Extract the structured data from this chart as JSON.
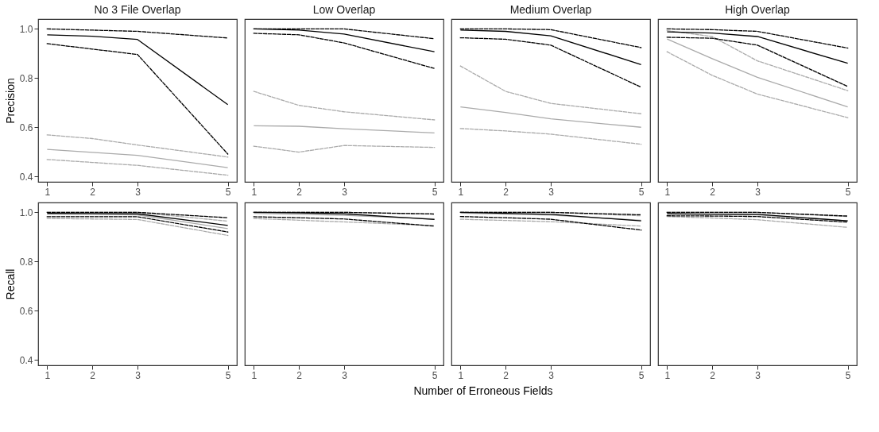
{
  "chart_data": [
    {
      "type": "line",
      "title": "No 3 File Overlap",
      "ylabel": "Precision",
      "x": [
        1,
        2,
        3,
        5
      ],
      "xlim": [
        0.8,
        5.2
      ],
      "xticks": [
        1,
        2,
        3,
        5
      ],
      "ylim": [
        0.378,
        1.04
      ],
      "yticks": [
        0.4,
        0.6,
        0.8,
        {
          "value": 1.0,
          "label": "1.0"
        }
      ],
      "grid": false,
      "series": [
        {
          "color": "#000000",
          "line_style": "solid",
          "values": [
            0.976,
            0.97,
            0.957,
            0.692
          ]
        },
        {
          "color": "#000000",
          "line_style": "dashed",
          "values": [
            1.0,
            0.995,
            0.99,
            0.963
          ]
        },
        {
          "color": "#000000",
          "line_style": "dashed",
          "values": [
            0.94,
            0.918,
            0.896,
            0.491
          ]
        },
        {
          "color": "#aaaaaa",
          "line_style": "dashed",
          "values": [
            0.569,
            0.554,
            0.528,
            0.479
          ]
        },
        {
          "color": "#aaaaaa",
          "line_style": "solid",
          "values": [
            0.51,
            0.498,
            0.486,
            0.436
          ]
        },
        {
          "color": "#aaaaaa",
          "line_style": "dashed",
          "values": [
            0.469,
            0.457,
            0.445,
            0.405
          ]
        }
      ]
    },
    {
      "type": "line",
      "title": "Low Overlap",
      "x": [
        1,
        2,
        3,
        5
      ],
      "xlim": [
        0.8,
        5.2
      ],
      "xticks": [
        1,
        2,
        3,
        5
      ],
      "ylim": [
        0.378,
        1.04
      ],
      "yticks": [
        0.4,
        0.6,
        0.8,
        1.0
      ],
      "tick_labels": "x",
      "grid": false,
      "series": [
        {
          "color": "#000000",
          "line_style": "solid",
          "values": [
            1.0,
            0.995,
            0.979,
            0.907
          ]
        },
        {
          "color": "#000000",
          "line_style": "dashed",
          "values": [
            1.0,
            1.0,
            1.0,
            0.96
          ]
        },
        {
          "color": "#000000",
          "line_style": "dashed",
          "values": [
            0.982,
            0.976,
            0.943,
            0.839
          ]
        },
        {
          "color": "#aaaaaa",
          "line_style": "dashed",
          "values": [
            0.746,
            0.689,
            0.663,
            0.63
          ]
        },
        {
          "color": "#aaaaaa",
          "line_style": "solid",
          "values": [
            0.606,
            0.604,
            0.594,
            0.577
          ]
        },
        {
          "color": "#aaaaaa",
          "line_style": "dashed",
          "values": [
            0.523,
            0.499,
            0.526,
            0.518
          ]
        }
      ]
    },
    {
      "type": "line",
      "title": "Medium Overlap",
      "x": [
        1,
        2,
        3,
        5
      ],
      "xlim": [
        0.8,
        5.2
      ],
      "xticks": [
        1,
        2,
        3,
        5
      ],
      "ylim": [
        0.378,
        1.04
      ],
      "yticks": [
        0.4,
        0.6,
        0.8,
        1.0
      ],
      "tick_labels": "x",
      "grid": false,
      "series": [
        {
          "color": "#000000",
          "line_style": "solid",
          "values": [
            0.995,
            0.99,
            0.972,
            0.855
          ]
        },
        {
          "color": "#000000",
          "line_style": "dashed",
          "values": [
            1.0,
            1.0,
            0.997,
            0.924
          ]
        },
        {
          "color": "#000000",
          "line_style": "dashed",
          "values": [
            0.964,
            0.958,
            0.934,
            0.763
          ]
        },
        {
          "color": "#aaaaaa",
          "line_style": "dashed",
          "values": [
            0.849,
            0.746,
            0.697,
            0.655
          ]
        },
        {
          "color": "#aaaaaa",
          "line_style": "solid",
          "values": [
            0.683,
            0.66,
            0.634,
            0.6
          ]
        },
        {
          "color": "#aaaaaa",
          "line_style": "dashed",
          "values": [
            0.595,
            0.585,
            0.572,
            0.531
          ]
        }
      ]
    },
    {
      "type": "line",
      "title": "High Overlap",
      "x": [
        1,
        2,
        3,
        5
      ],
      "xlim": [
        0.8,
        5.2
      ],
      "xticks": [
        1,
        2,
        3,
        5
      ],
      "ylim": [
        0.378,
        1.04
      ],
      "yticks": [
        0.4,
        0.6,
        0.8,
        1.0
      ],
      "tick_labels": "x",
      "grid": false,
      "series": [
        {
          "color": "#000000",
          "line_style": "solid",
          "values": [
            0.988,
            0.983,
            0.969,
            0.86
          ]
        },
        {
          "color": "#000000",
          "line_style": "dashed",
          "values": [
            1.0,
            0.997,
            0.99,
            0.922
          ]
        },
        {
          "color": "#000000",
          "line_style": "dashed",
          "values": [
            0.966,
            0.962,
            0.934,
            0.766
          ]
        },
        {
          "color": "#aaaaaa",
          "line_style": "dashed",
          "values": [
            0.993,
            0.969,
            0.87,
            0.749
          ]
        },
        {
          "color": "#aaaaaa",
          "line_style": "solid",
          "values": [
            0.959,
            0.879,
            0.803,
            0.683
          ]
        },
        {
          "color": "#aaaaaa",
          "line_style": "dashed",
          "values": [
            0.907,
            0.811,
            0.735,
            0.639
          ]
        }
      ]
    },
    {
      "type": "line",
      "ylabel": "Recall",
      "x": [
        1,
        2,
        3,
        5
      ],
      "xlim": [
        0.8,
        5.2
      ],
      "xticks": [
        1,
        2,
        3,
        5
      ],
      "ylim": [
        0.378,
        1.04
      ],
      "yticks": [
        0.4,
        0.6,
        0.8,
        {
          "value": 1.0,
          "label": "1.0"
        }
      ],
      "grid": false,
      "series": [
        {
          "color": "#000000",
          "line_style": "solid",
          "values": [
            0.996,
            0.995,
            0.994,
            0.947
          ]
        },
        {
          "color": "#000000",
          "line_style": "dashed",
          "values": [
            1.0,
            1.0,
            1.0,
            0.978
          ]
        },
        {
          "color": "#000000",
          "line_style": "dashed",
          "values": [
            0.982,
            0.982,
            0.982,
            0.92
          ]
        },
        {
          "color": "#aaaaaa",
          "line_style": "dashed",
          "values": [
            1.0,
            1.0,
            1.0,
            0.964
          ]
        },
        {
          "color": "#aaaaaa",
          "line_style": "solid",
          "values": [
            0.993,
            0.992,
            0.99,
            0.934
          ]
        },
        {
          "color": "#aaaaaa",
          "line_style": "dashed",
          "values": [
            0.975,
            0.973,
            0.971,
            0.906
          ]
        }
      ]
    },
    {
      "type": "line",
      "xlabel": "Number of Erroneous Fields",
      "x": [
        1,
        2,
        3,
        5
      ],
      "xlim": [
        0.8,
        5.2
      ],
      "xticks": [
        1,
        2,
        3,
        5
      ],
      "ylim": [
        0.378,
        1.04
      ],
      "yticks": [
        0.4,
        0.6,
        0.8,
        1.0
      ],
      "tick_labels": "x",
      "grid": false,
      "series": [
        {
          "color": "#000000",
          "line_style": "solid",
          "values": [
            1.0,
            0.998,
            0.994,
            0.971
          ]
        },
        {
          "color": "#000000",
          "line_style": "dashed",
          "values": [
            1.0,
            1.0,
            1.0,
            0.993
          ]
        },
        {
          "color": "#000000",
          "line_style": "dashed",
          "values": [
            0.982,
            0.978,
            0.973,
            0.944
          ]
        },
        {
          "color": "#aaaaaa",
          "line_style": "dashed",
          "values": [
            1.0,
            1.0,
            1.0,
            0.994
          ]
        },
        {
          "color": "#aaaaaa",
          "line_style": "solid",
          "values": [
            0.996,
            0.992,
            0.988,
            0.973
          ]
        },
        {
          "color": "#aaaaaa",
          "line_style": "dashed",
          "values": [
            0.975,
            0.968,
            0.961,
            0.946
          ]
        }
      ]
    },
    {
      "type": "line",
      "x": [
        1,
        2,
        3,
        5
      ],
      "xlim": [
        0.8,
        5.2
      ],
      "xticks": [
        1,
        2,
        3,
        5
      ],
      "ylim": [
        0.378,
        1.04
      ],
      "yticks": [
        0.4,
        0.6,
        0.8,
        1.0
      ],
      "tick_labels": "x",
      "grid": false,
      "series": [
        {
          "color": "#000000",
          "line_style": "solid",
          "values": [
            1.0,
            0.996,
            0.992,
            0.965
          ]
        },
        {
          "color": "#000000",
          "line_style": "dashed",
          "values": [
            1.0,
            1.0,
            1.0,
            0.99
          ]
        },
        {
          "color": "#000000",
          "line_style": "dashed",
          "values": [
            0.983,
            0.978,
            0.972,
            0.928
          ]
        },
        {
          "color": "#aaaaaa",
          "line_style": "dashed",
          "values": [
            1.0,
            1.0,
            1.0,
            0.986
          ]
        },
        {
          "color": "#aaaaaa",
          "line_style": "solid",
          "values": [
            0.997,
            0.993,
            0.989,
            0.968
          ]
        },
        {
          "color": "#aaaaaa",
          "line_style": "dashed",
          "values": [
            0.972,
            0.967,
            0.962,
            0.944
          ]
        }
      ]
    },
    {
      "type": "line",
      "x": [
        1,
        2,
        3,
        5
      ],
      "xlim": [
        0.8,
        5.2
      ],
      "xticks": [
        1,
        2,
        3,
        5
      ],
      "ylim": [
        0.378,
        1.04
      ],
      "yticks": [
        0.4,
        0.6,
        0.8,
        1.0
      ],
      "tick_labels": "x",
      "grid": false,
      "series": [
        {
          "color": "#000000",
          "line_style": "solid",
          "values": [
            0.994,
            0.993,
            0.992,
            0.965
          ]
        },
        {
          "color": "#000000",
          "line_style": "dashed",
          "values": [
            1.0,
            1.0,
            1.0,
            0.985
          ]
        },
        {
          "color": "#000000",
          "line_style": "dashed",
          "values": [
            0.986,
            0.985,
            0.983,
            0.96
          ]
        },
        {
          "color": "#aaaaaa",
          "line_style": "dashed",
          "values": [
            1.0,
            1.0,
            1.0,
            0.983
          ]
        },
        {
          "color": "#aaaaaa",
          "line_style": "solid",
          "values": [
            0.994,
            0.992,
            0.99,
            0.965
          ]
        },
        {
          "color": "#aaaaaa",
          "line_style": "dashed",
          "values": [
            0.983,
            0.977,
            0.97,
            0.939
          ]
        }
      ]
    }
  ]
}
